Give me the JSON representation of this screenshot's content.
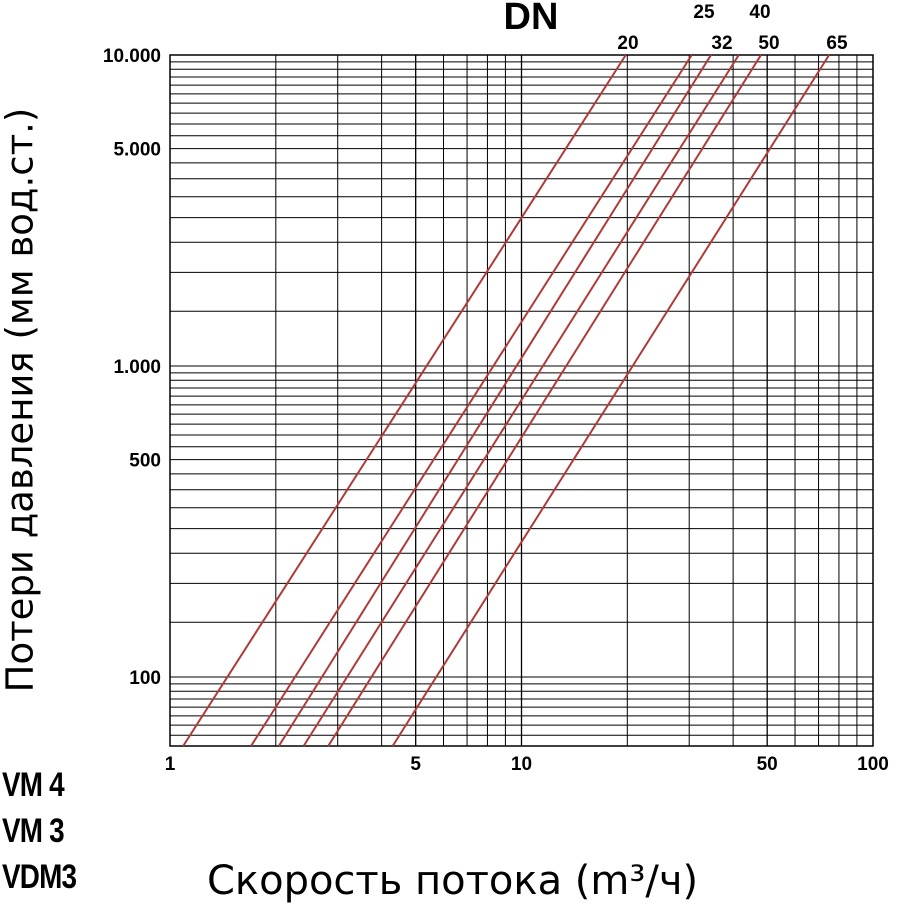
{
  "chart_data": {
    "type": "line",
    "x_scale": "log",
    "y_scale": "log",
    "xlim": [
      1,
      100
    ],
    "ylim": [
      60,
      10000
    ],
    "x_ticks": [
      1,
      5,
      10,
      50,
      100
    ],
    "x_tick_labels": [
      "1",
      "5",
      "10",
      "50",
      "100"
    ],
    "y_ticks": [
      100,
      500,
      1000,
      5000,
      10000
    ],
    "y_tick_labels": [
      "100",
      "500",
      "1.000",
      "5.000",
      "10.000"
    ],
    "xlabel": "Скорость потока (m³/ч)",
    "ylabel": "Потери давления (мм вод.ст.)",
    "legend_title": "DN",
    "grid": true,
    "line_color": "#b03a3a",
    "series": [
      {
        "name": "20",
        "x": [
          1.09,
          19.8
        ],
        "y": [
          60,
          10000
        ]
      },
      {
        "name": "25",
        "x": [
          1.7,
          30.5
        ],
        "y": [
          60,
          10000
        ]
      },
      {
        "name": "32",
        "x": [
          2.04,
          34.6
        ],
        "y": [
          60,
          10000
        ]
      },
      {
        "name": "40",
        "x": [
          2.4,
          41.5
        ],
        "y": [
          60,
          10000
        ]
      },
      {
        "name": "50",
        "x": [
          2.82,
          48.0
        ],
        "y": [
          60,
          10000
        ]
      },
      {
        "name": "65",
        "x": [
          4.3,
          75.0
        ],
        "y": [
          60,
          10000
        ]
      }
    ]
  },
  "models": [
    "VM 4",
    "VM 3",
    "VDM3"
  ]
}
